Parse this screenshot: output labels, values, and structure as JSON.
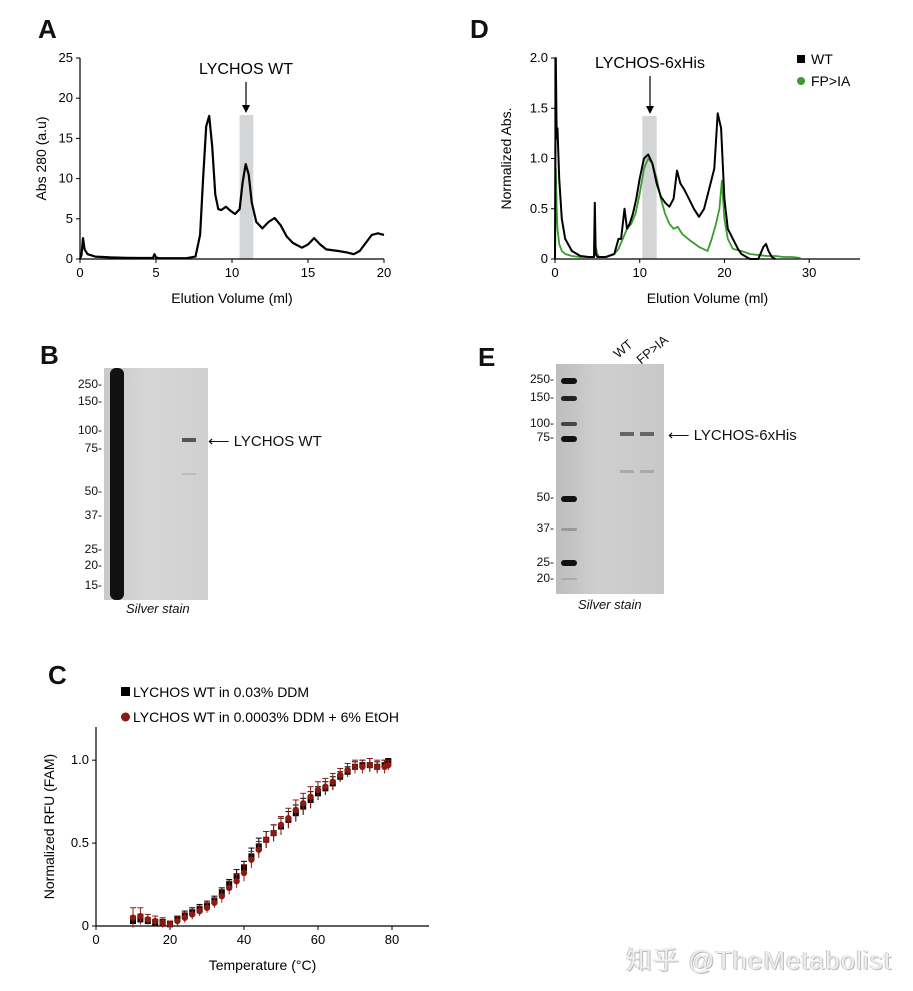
{
  "panels": {
    "A": "A",
    "B": "B",
    "C": "C",
    "D": "D",
    "E": "E"
  },
  "chart_data": [
    {
      "id": "A",
      "type": "line",
      "title": "",
      "annotation": "LYCHOS WT",
      "highlight_range": [
        10.5,
        11.4
      ],
      "xlabel": "Elution Volume (ml)",
      "ylabel": "Abs 280 (a.u)",
      "xlim": [
        0,
        20
      ],
      "ylim": [
        0,
        25
      ],
      "xticks": [
        0,
        5,
        10,
        15,
        20
      ],
      "yticks": [
        0,
        5,
        10,
        15,
        20,
        25
      ],
      "series": [
        {
          "name": "LYCHOS WT",
          "color": "#000000",
          "x": [
            0,
            0.1,
            0.2,
            0.3,
            0.5,
            1,
            2,
            3,
            4,
            4.8,
            4.9,
            5.0,
            5.2,
            6,
            7,
            7.6,
            7.9,
            8.1,
            8.3,
            8.5,
            8.7,
            8.9,
            9.1,
            9.3,
            9.6,
            9.9,
            10.2,
            10.5,
            10.7,
            10.9,
            11.1,
            11.3,
            11.6,
            12.0,
            12.4,
            12.8,
            13.2,
            13.6,
            14.0,
            14.6,
            15.0,
            15.4,
            15.8,
            16.2,
            17.0,
            17.6,
            18.0,
            18.4,
            18.8,
            19.2,
            19.6,
            20.0
          ],
          "y": [
            0,
            0.5,
            2.6,
            1.2,
            0.6,
            0.3,
            0.2,
            0.15,
            0.12,
            0.15,
            0.6,
            0.2,
            0.1,
            0.1,
            0.1,
            0.3,
            3,
            10,
            16.5,
            17.8,
            14,
            8,
            6.2,
            6.1,
            6.5,
            6,
            5.6,
            6.2,
            9.5,
            11.8,
            10.5,
            7,
            4.6,
            3.8,
            4.6,
            5.1,
            4.2,
            2.8,
            2.0,
            1.4,
            1.8,
            2.6,
            1.8,
            1.2,
            1.0,
            0.8,
            0.6,
            1.0,
            2.0,
            3.0,
            3.2,
            3.0
          ]
        }
      ]
    },
    {
      "id": "D",
      "type": "line",
      "annotation": "LYCHOS-6xHis",
      "highlight_range": [
        10.3,
        12.0
      ],
      "xlabel": "Elution Volume (ml)",
      "ylabel": "Normalized Abs.",
      "xlim": [
        0,
        36
      ],
      "ylim": [
        0,
        2.0
      ],
      "xticks": [
        0,
        10,
        20,
        30
      ],
      "yticks": [
        "0",
        "0.5",
        "1.0",
        "1.5",
        "2.0"
      ],
      "yticks_values": [
        0,
        0.5,
        1.0,
        1.5,
        2.0
      ],
      "legend": "top-right",
      "series": [
        {
          "name": "WT",
          "color": "#000000",
          "marker": "square",
          "x": [
            0,
            0.1,
            0.2,
            0.3,
            0.5,
            0.8,
            1.2,
            2,
            3,
            4,
            4.6,
            4.7,
            4.8,
            5,
            6,
            7,
            7.5,
            7.8,
            8.2,
            8.5,
            8.8,
            9.2,
            9.6,
            10,
            10.5,
            11,
            11.5,
            12,
            12.5,
            13,
            13.5,
            14,
            14.4,
            14.8,
            15.2,
            15.8,
            16.4,
            17,
            17.6,
            18.2,
            18.8,
            19.2,
            19.6,
            20,
            20.4,
            21,
            21.6,
            22,
            23,
            24,
            24.6,
            24.9,
            25.2,
            25.6,
            26
          ],
          "y": [
            0,
            2.0,
            1.2,
            1.3,
            0.8,
            0.4,
            0.2,
            0.08,
            0.03,
            0.02,
            0.02,
            0.56,
            0.05,
            0.02,
            0.02,
            0.05,
            0.2,
            0.2,
            0.5,
            0.3,
            0.35,
            0.45,
            0.6,
            0.8,
            1.0,
            1.04,
            0.95,
            0.75,
            0.62,
            0.56,
            0.52,
            0.6,
            0.88,
            0.75,
            0.7,
            0.6,
            0.5,
            0.42,
            0.5,
            0.7,
            0.9,
            1.45,
            1.3,
            0.6,
            0.3,
            0.2,
            0.1,
            0.05,
            0,
            0,
            0.12,
            0.15,
            0.08,
            0.02,
            0
          ]
        },
        {
          "name": "FP>IA",
          "color": "#3a9b2e",
          "marker": "circle",
          "x": [
            0,
            0.1,
            0.2,
            0.3,
            0.5,
            0.8,
            1.2,
            2,
            3,
            4,
            4.6,
            4.8,
            5,
            5.2,
            6,
            7,
            7.5,
            8,
            8.5,
            9,
            9.5,
            10,
            10.5,
            11,
            11.5,
            12,
            12.5,
            13,
            13.5,
            14,
            14.5,
            15,
            16,
            17,
            18,
            18.5,
            19,
            19.4,
            19.7,
            20,
            20.4,
            21,
            22,
            23,
            24,
            25,
            26,
            27,
            28,
            29
          ],
          "y": [
            0,
            0.9,
            0.5,
            0.3,
            0.15,
            0.08,
            0.05,
            0.03,
            0.02,
            0.02,
            0.02,
            0.12,
            0.05,
            0.02,
            0.02,
            0.05,
            0.1,
            0.2,
            0.3,
            0.35,
            0.45,
            0.65,
            0.9,
            1.0,
            0.95,
            0.8,
            0.6,
            0.45,
            0.35,
            0.3,
            0.32,
            0.25,
            0.18,
            0.12,
            0.08,
            0.2,
            0.35,
            0.5,
            0.78,
            0.4,
            0.2,
            0.1,
            0.08,
            0.05,
            0.04,
            0.03,
            0.03,
            0.02,
            0.02,
            0.01
          ]
        }
      ]
    },
    {
      "id": "C",
      "type": "scatter",
      "xlabel": "Temperature (°C)",
      "ylabel": "Normalized RFU (FAM)",
      "xlim": [
        0,
        90
      ],
      "ylim": [
        0,
        1.2
      ],
      "xticks": [
        0,
        20,
        40,
        60,
        80
      ],
      "yticks": [
        "0",
        "0.5",
        "1.0"
      ],
      "yticks_values": [
        0,
        0.5,
        1.0
      ],
      "legend": "top-left",
      "error_bars": true,
      "series": [
        {
          "name": "LYCHOS WT in 0.03% DDM",
          "color": "#000000",
          "marker": "square",
          "x": [
            10,
            12,
            14,
            16,
            18,
            20,
            22,
            24,
            26,
            28,
            30,
            32,
            34,
            36,
            38,
            40,
            42,
            44,
            46,
            48,
            50,
            52,
            54,
            56,
            58,
            60,
            62,
            64,
            66,
            68,
            70,
            72,
            74,
            76,
            78,
            79
          ],
          "y": [
            0.03,
            0.04,
            0.03,
            0.02,
            0.02,
            0.01,
            0.04,
            0.06,
            0.08,
            0.1,
            0.12,
            0.15,
            0.2,
            0.25,
            0.3,
            0.35,
            0.42,
            0.48,
            0.52,
            0.56,
            0.6,
            0.64,
            0.68,
            0.72,
            0.76,
            0.8,
            0.83,
            0.86,
            0.9,
            0.93,
            0.96,
            0.97,
            0.97,
            0.96,
            0.97,
            0.99
          ],
          "err": [
            0.03,
            0.03,
            0.02,
            0.02,
            0.02,
            0.02,
            0.02,
            0.03,
            0.03,
            0.03,
            0.03,
            0.03,
            0.03,
            0.03,
            0.04,
            0.04,
            0.05,
            0.05,
            0.05,
            0.05,
            0.05,
            0.05,
            0.05,
            0.05,
            0.05,
            0.04,
            0.04,
            0.04,
            0.03,
            0.03,
            0.03,
            0.03,
            0.04,
            0.03,
            0.03,
            0.02
          ]
        },
        {
          "name": "LYCHOS WT in 0.0003% DDM + 6% EtOH",
          "color": "#8b1a12",
          "marker": "circle",
          "x": [
            10,
            12,
            14,
            16,
            18,
            20,
            22,
            24,
            26,
            28,
            30,
            32,
            34,
            36,
            38,
            40,
            42,
            44,
            46,
            48,
            50,
            52,
            54,
            56,
            58,
            60,
            62,
            64,
            66,
            68,
            70,
            72,
            74,
            76,
            78,
            79
          ],
          "y": [
            0.05,
            0.06,
            0.04,
            0.03,
            0.02,
            0.01,
            0.03,
            0.05,
            0.07,
            0.09,
            0.11,
            0.14,
            0.18,
            0.23,
            0.27,
            0.32,
            0.4,
            0.46,
            0.52,
            0.56,
            0.61,
            0.65,
            0.7,
            0.74,
            0.78,
            0.82,
            0.84,
            0.87,
            0.91,
            0.94,
            0.96,
            0.96,
            0.97,
            0.96,
            0.96,
            0.97
          ],
          "err": [
            0.06,
            0.05,
            0.03,
            0.03,
            0.03,
            0.02,
            0.03,
            0.03,
            0.03,
            0.03,
            0.03,
            0.03,
            0.04,
            0.04,
            0.04,
            0.05,
            0.05,
            0.05,
            0.05,
            0.05,
            0.05,
            0.06,
            0.06,
            0.06,
            0.06,
            0.05,
            0.05,
            0.05,
            0.04,
            0.04,
            0.04,
            0.04,
            0.04,
            0.04,
            0.04,
            0.03
          ]
        }
      ]
    }
  ],
  "gel_B": {
    "markers": [
      "250-",
      "150-",
      "100-",
      "75-",
      "50-",
      "37-",
      "25-",
      "20-",
      "15-"
    ],
    "band_label": "LYCHOS WT",
    "caption": "Silver stain"
  },
  "gel_E": {
    "markers": [
      "250-",
      "150-",
      "100-",
      "75-",
      "50-",
      "37-",
      "25-",
      "20-"
    ],
    "lane_labels": [
      "WT",
      "FP>IA"
    ],
    "band_label": "LYCHOS-6xHis",
    "caption": "Silver stain"
  },
  "watermark": "知乎 @TheMetabolist"
}
